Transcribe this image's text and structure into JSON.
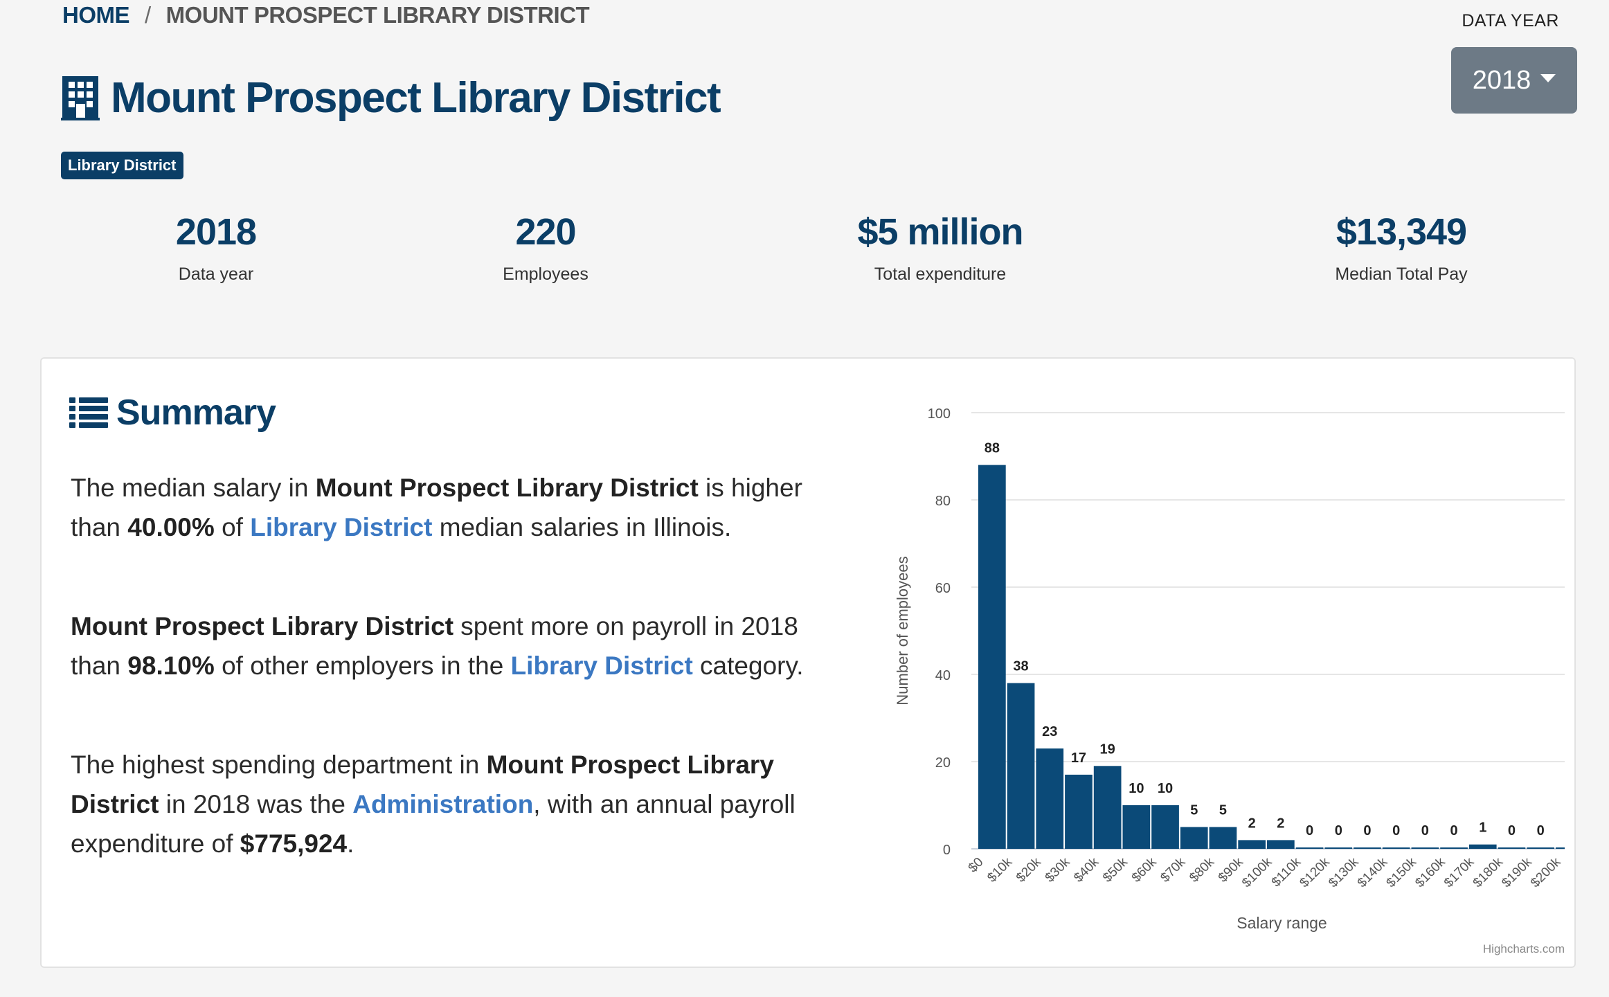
{
  "breadcrumb": {
    "home": "HOME",
    "separator": "/",
    "current": "MOUNT PROSPECT LIBRARY DISTRICT"
  },
  "data_year_selector": {
    "label": "DATA YEAR",
    "selected": "2018"
  },
  "page_title": "Mount Prospect Library District",
  "category_badge": "Library District",
  "stats": [
    {
      "value": "2018",
      "label": "Data year"
    },
    {
      "value": "220",
      "label": "Employees"
    },
    {
      "value": "$5 million",
      "label": "Total expenditure"
    },
    {
      "value": "$13,349",
      "label": "Median Total Pay"
    }
  ],
  "summary": {
    "heading": "Summary",
    "p1": {
      "t1": "The median salary in ",
      "b1": "Mount Prospect Library District",
      "t2": " is higher than ",
      "b2": "40.00%",
      "t3": " of ",
      "link": "Library District",
      "t4": " median salaries in Illinois."
    },
    "p2": {
      "b1": "Mount Prospect Library District",
      "t1": " spent more on payroll in 2018 than ",
      "b2": "98.10%",
      "t2": " of other employers in the ",
      "link": "Library District",
      "t3": " category."
    },
    "p3": {
      "t1": "The highest spending department in ",
      "b1": "Mount Prospect Library District",
      "t2": " in 2018 was the ",
      "link": "Administration",
      "t3": ", with an annual payroll expenditure of ",
      "b2": "$775,924",
      "t4": "."
    }
  },
  "chart_data": {
    "type": "bar",
    "title": "",
    "xlabel": "Salary range",
    "ylabel": "Number of employees",
    "ylim": [
      0,
      100
    ],
    "yticks": [
      0,
      20,
      40,
      60,
      80,
      100
    ],
    "categories": [
      "$0",
      "$10k",
      "$20k",
      "$30k",
      "$40k",
      "$50k",
      "$60k",
      "$70k",
      "$80k",
      "$90k",
      "$100k",
      "$110k",
      "$120k",
      "$130k",
      "$140k",
      "$150k",
      "$160k",
      "$170k",
      "$180k",
      "$190k",
      "$200k"
    ],
    "values": [
      88,
      38,
      23,
      17,
      19,
      10,
      10,
      5,
      5,
      2,
      2,
      0,
      0,
      0,
      0,
      0,
      0,
      1,
      0,
      0,
      0
    ],
    "credit": "Highcharts.com",
    "bar_color": "#0b4a78",
    "grid": true,
    "data_labels": true
  },
  "colors": {
    "navy": "#0b3e66",
    "link": "#3b78c2",
    "button": "#6d7a86",
    "bar": "#0b4a78"
  }
}
